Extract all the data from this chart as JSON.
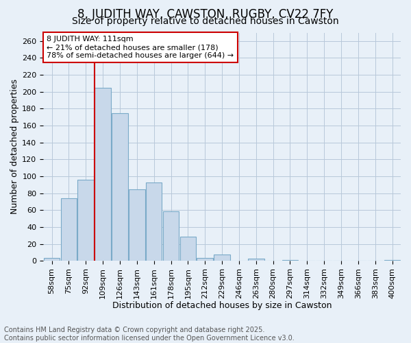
{
  "title1": "8, JUDITH WAY, CAWSTON, RUGBY, CV22 7FY",
  "title2": "Size of property relative to detached houses in Cawston",
  "xlabel": "Distribution of detached houses by size in Cawston",
  "ylabel": "Number of detached properties",
  "categories": [
    "58sqm",
    "75sqm",
    "92sqm",
    "109sqm",
    "126sqm",
    "143sqm",
    "161sqm",
    "178sqm",
    "195sqm",
    "212sqm",
    "229sqm",
    "246sqm",
    "263sqm",
    "280sqm",
    "297sqm",
    "314sqm",
    "332sqm",
    "349sqm",
    "366sqm",
    "383sqm",
    "400sqm"
  ],
  "values": [
    4,
    74,
    96,
    205,
    175,
    85,
    93,
    59,
    29,
    4,
    8,
    0,
    3,
    0,
    1,
    0,
    0,
    0,
    0,
    0,
    1
  ],
  "bar_color": "#c8d8ea",
  "bar_edge_color": "#7aaac8",
  "grid_color": "#b8c8da",
  "background_color": "#e8f0f8",
  "plot_bg_color": "#e8f0f8",
  "vline_x_index": 3,
  "vline_color": "#cc0000",
  "annotation_line1": "8 JUDITH WAY: 111sqm",
  "annotation_line2": "← 21% of detached houses are smaller (178)",
  "annotation_line3": "78% of semi-detached houses are larger (644) →",
  "annotation_box_color": "#ffffff",
  "annotation_box_edge": "#cc0000",
  "ylim": [
    0,
    270
  ],
  "yticks": [
    0,
    20,
    40,
    60,
    80,
    100,
    120,
    140,
    160,
    180,
    200,
    220,
    240,
    260
  ],
  "footer1": "Contains HM Land Registry data © Crown copyright and database right 2025.",
  "footer2": "Contains public sector information licensed under the Open Government Licence v3.0.",
  "title1_fontsize": 12,
  "title2_fontsize": 10,
  "xlabel_fontsize": 9,
  "ylabel_fontsize": 9,
  "tick_fontsize": 8,
  "annotation_fontsize": 8,
  "footer_fontsize": 7
}
